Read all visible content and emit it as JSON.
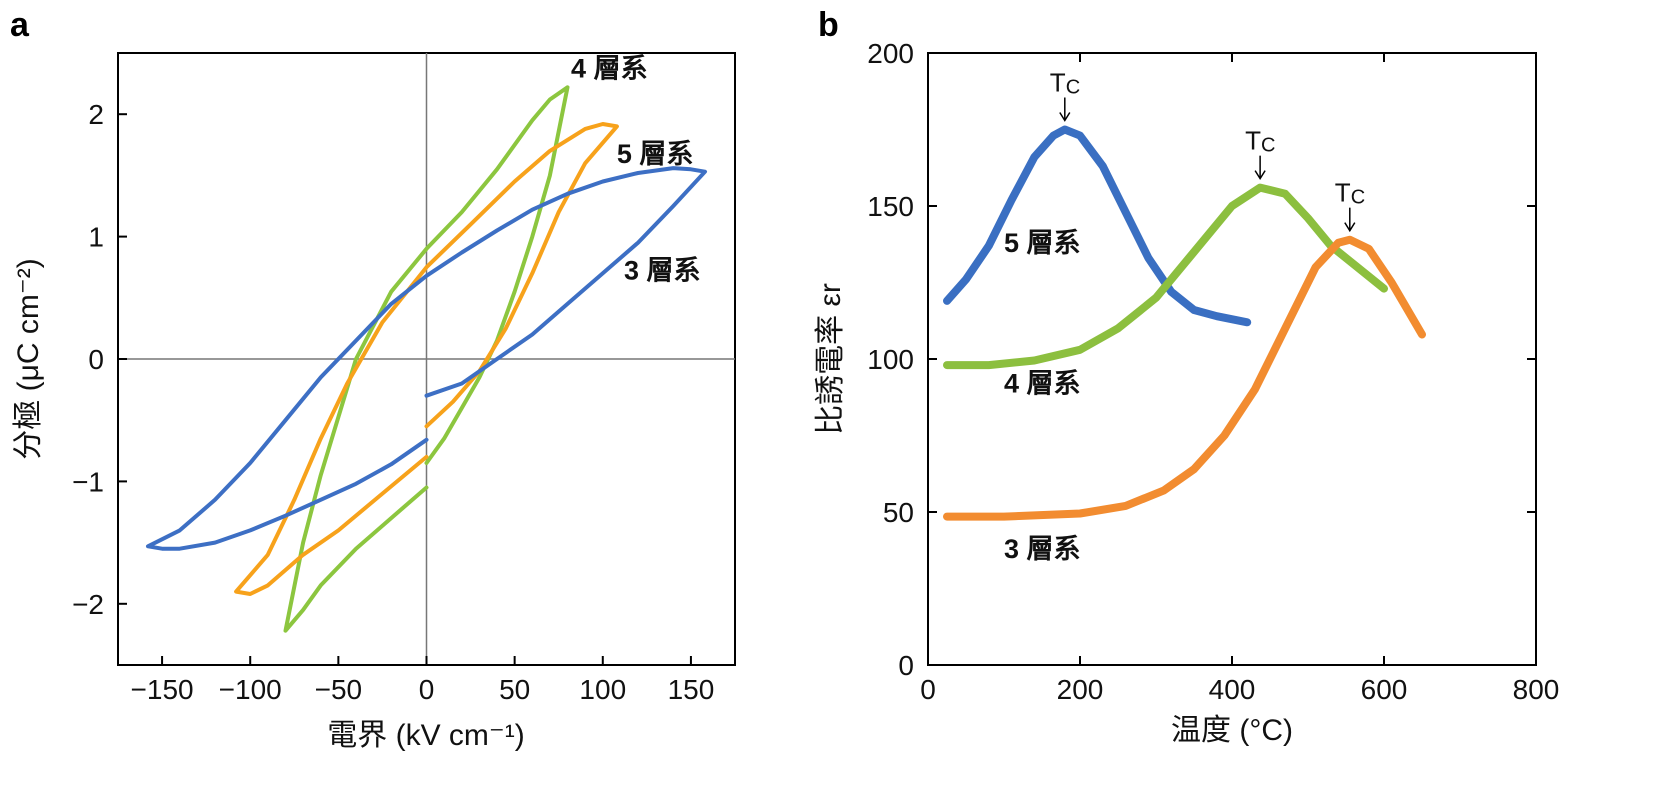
{
  "panels": {
    "a": {
      "letter": "a",
      "xlabel": "電界 (kV cm⁻¹)",
      "ylabel": "分極 (μC cm⁻²)"
    },
    "b": {
      "letter": "b",
      "xlabel": "温度 (°C)",
      "ylabel": "比誘電率 εr"
    }
  },
  "chart_data": [
    {
      "id": "a",
      "type": "line",
      "title": "",
      "xlabel": "電界 (kV cm⁻¹)",
      "ylabel": "分極 (μC cm⁻²)",
      "xlim": [
        -175,
        175
      ],
      "ylim": [
        -2.5,
        2.5
      ],
      "xticks": [
        -150,
        -100,
        -50,
        0,
        50,
        100,
        150
      ],
      "xtick_labels": [
        "−150",
        "−100",
        "−50",
        "0",
        "50",
        "100",
        "150"
      ],
      "yticks": [
        -2,
        -1,
        0,
        1,
        2
      ],
      "ytick_labels": [
        "−2",
        "−1",
        "0",
        "1",
        "2"
      ],
      "zero_lines": true,
      "series": [
        {
          "name": "4 層系",
          "color": "#8cc63f",
          "label_pos": [
            82,
            2.3
          ],
          "points": [
            [
              0,
              -0.85
            ],
            [
              10,
              -0.65
            ],
            [
              20,
              -0.4
            ],
            [
              30,
              -0.15
            ],
            [
              40,
              0.15
            ],
            [
              50,
              0.55
            ],
            [
              60,
              1.0
            ],
            [
              70,
              1.5
            ],
            [
              80,
              2.22
            ],
            [
              70,
              2.12
            ],
            [
              60,
              1.95
            ],
            [
              40,
              1.55
            ],
            [
              20,
              1.2
            ],
            [
              0,
              0.9
            ],
            [
              -20,
              0.55
            ],
            [
              -40,
              0.0
            ],
            [
              -60,
              -0.95
            ],
            [
              -70,
              -1.5
            ],
            [
              -80,
              -2.22
            ],
            [
              -70,
              -2.05
            ],
            [
              -60,
              -1.85
            ],
            [
              -40,
              -1.55
            ],
            [
              -20,
              -1.3
            ],
            [
              0,
              -1.05
            ]
          ]
        },
        {
          "name": "5 層系",
          "color": "#f7a21b",
          "label_pos": [
            108,
            1.6
          ],
          "points": [
            [
              0,
              -0.55
            ],
            [
              15,
              -0.35
            ],
            [
              30,
              -0.1
            ],
            [
              45,
              0.25
            ],
            [
              60,
              0.7
            ],
            [
              75,
              1.2
            ],
            [
              90,
              1.6
            ],
            [
              108,
              1.9
            ],
            [
              100,
              1.92
            ],
            [
              90,
              1.88
            ],
            [
              70,
              1.7
            ],
            [
              50,
              1.45
            ],
            [
              25,
              1.1
            ],
            [
              0,
              0.75
            ],
            [
              -25,
              0.3
            ],
            [
              -45,
              -0.2
            ],
            [
              -60,
              -0.65
            ],
            [
              -75,
              -1.15
            ],
            [
              -90,
              -1.6
            ],
            [
              -108,
              -1.9
            ],
            [
              -100,
              -1.92
            ],
            [
              -90,
              -1.85
            ],
            [
              -70,
              -1.6
            ],
            [
              -50,
              -1.4
            ],
            [
              -25,
              -1.1
            ],
            [
              0,
              -0.8
            ]
          ]
        },
        {
          "name": "3 層系",
          "color": "#3d6fc4",
          "label_pos": [
            112,
            0.65
          ],
          "points": [
            [
              0,
              -0.3
            ],
            [
              20,
              -0.2
            ],
            [
              40,
              0.0
            ],
            [
              60,
              0.2
            ],
            [
              80,
              0.45
            ],
            [
              100,
              0.7
            ],
            [
              120,
              0.95
            ],
            [
              140,
              1.25
            ],
            [
              158,
              1.53
            ],
            [
              150,
              1.55
            ],
            [
              140,
              1.56
            ],
            [
              120,
              1.52
            ],
            [
              100,
              1.45
            ],
            [
              80,
              1.35
            ],
            [
              60,
              1.22
            ],
            [
              40,
              1.05
            ],
            [
              20,
              0.87
            ],
            [
              0,
              0.68
            ],
            [
              -20,
              0.45
            ],
            [
              -40,
              0.15
            ],
            [
              -60,
              -0.15
            ],
            [
              -80,
              -0.5
            ],
            [
              -100,
              -0.85
            ],
            [
              -120,
              -1.15
            ],
            [
              -140,
              -1.4
            ],
            [
              -158,
              -1.53
            ],
            [
              -150,
              -1.55
            ],
            [
              -140,
              -1.55
            ],
            [
              -120,
              -1.5
            ],
            [
              -100,
              -1.4
            ],
            [
              -80,
              -1.28
            ],
            [
              -60,
              -1.15
            ],
            [
              -40,
              -1.02
            ],
            [
              -20,
              -0.86
            ],
            [
              0,
              -0.66
            ]
          ]
        }
      ]
    },
    {
      "id": "b",
      "type": "line",
      "title": "",
      "xlabel": "温度 (°C)",
      "ylabel": "比誘電率 εr",
      "xlim": [
        0,
        800
      ],
      "ylim": [
        0,
        200
      ],
      "xticks": [
        0,
        200,
        400,
        600,
        800
      ],
      "xtick_labels": [
        "0",
        "200",
        "400",
        "600",
        "800"
      ],
      "yticks": [
        0,
        50,
        100,
        150,
        200
      ],
      "ytick_labels": [
        "0",
        "50",
        "100",
        "150",
        "200"
      ],
      "tc_marker": "TC",
      "series": [
        {
          "name": "5 層系",
          "color": "#3a6fc2",
          "label_pos": [
            100,
            135
          ],
          "tc": [
            180,
            175
          ],
          "points": [
            [
              25,
              119
            ],
            [
              50,
              126
            ],
            [
              80,
              137
            ],
            [
              110,
              152
            ],
            [
              140,
              166
            ],
            [
              165,
              173
            ],
            [
              180,
              175
            ],
            [
              200,
              173
            ],
            [
              230,
              163
            ],
            [
              260,
              148
            ],
            [
              290,
              133
            ],
            [
              320,
              122
            ],
            [
              350,
              116
            ],
            [
              380,
              114
            ],
            [
              420,
              112
            ]
          ]
        },
        {
          "name": "4 層系",
          "color": "#8cbf3f",
          "label_pos": [
            100,
            89
          ],
          "tc": [
            437,
            156
          ],
          "points": [
            [
              25,
              98
            ],
            [
              80,
              98
            ],
            [
              140,
              99.5
            ],
            [
              200,
              103
            ],
            [
              250,
              110
            ],
            [
              300,
              120
            ],
            [
              350,
              135
            ],
            [
              400,
              150
            ],
            [
              437,
              156
            ],
            [
              470,
              154
            ],
            [
              500,
              146
            ],
            [
              530,
              137
            ],
            [
              560,
              131
            ],
            [
              600,
              123
            ]
          ]
        },
        {
          "name": "3 層系",
          "color": "#f28c30",
          "label_pos": [
            100,
            35
          ],
          "tc": [
            555,
            139
          ],
          "points": [
            [
              25,
              48.5
            ],
            [
              100,
              48.5
            ],
            [
              200,
              49.5
            ],
            [
              260,
              52
            ],
            [
              310,
              57
            ],
            [
              350,
              64
            ],
            [
              390,
              75
            ],
            [
              430,
              90
            ],
            [
              470,
              110
            ],
            [
              510,
              130
            ],
            [
              540,
              138
            ],
            [
              555,
              139
            ],
            [
              580,
              136
            ],
            [
              610,
              125
            ],
            [
              650,
              108
            ]
          ]
        }
      ]
    }
  ]
}
